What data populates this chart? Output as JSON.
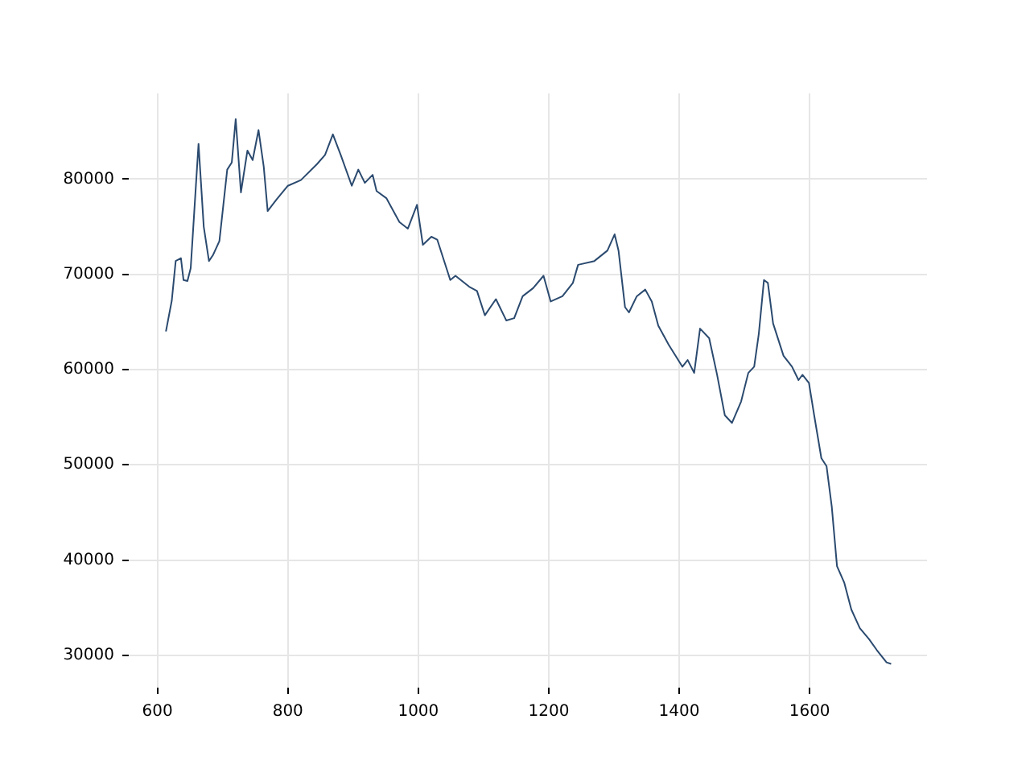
{
  "chart_data": {
    "type": "line",
    "xlim": [
      556,
      1780
    ],
    "ylim": [
      26600,
      89000
    ],
    "xticks": [
      600,
      800,
      1000,
      1200,
      1400,
      1600
    ],
    "yticks": [
      30000,
      40000,
      50000,
      60000,
      70000,
      80000
    ],
    "grid": true,
    "legend": false,
    "marker": "none",
    "line_style": "solid",
    "series": [
      {
        "color": "#2b4a6f",
        "x": [
          613,
          622,
          628,
          636,
          640,
          646,
          651,
          663,
          671,
          679,
          685,
          695,
          707,
          714,
          720,
          728,
          738,
          746,
          755,
          763,
          769,
          783,
          800,
          820,
          845,
          857,
          869,
          881,
          898,
          908,
          918,
          930,
          936,
          951,
          971,
          984,
          998,
          1007,
          1020,
          1029,
          1049,
          1057,
          1078,
          1090,
          1102,
          1119,
          1135,
          1147,
          1160,
          1176,
          1192,
          1203,
          1221,
          1237,
          1245,
          1270,
          1290,
          1301,
          1307,
          1317,
          1323,
          1335,
          1348,
          1358,
          1368,
          1384,
          1405,
          1413,
          1423,
          1432,
          1446,
          1458,
          1470,
          1481,
          1495,
          1506,
          1515,
          1522,
          1530,
          1536,
          1544,
          1560,
          1573,
          1583,
          1589,
          1599,
          1607,
          1618,
          1626,
          1634,
          1642,
          1653,
          1664,
          1677,
          1691,
          1703,
          1718,
          1725
        ],
        "values": [
          64000,
          67250,
          71400,
          71700,
          69400,
          69300,
          70650,
          83700,
          75000,
          71400,
          72000,
          73500,
          81000,
          81750,
          86300,
          78600,
          83000,
          82000,
          85150,
          81300,
          76650,
          77900,
          79300,
          79900,
          81600,
          82550,
          84700,
          82550,
          79300,
          81000,
          79600,
          80450,
          78750,
          78000,
          75500,
          74800,
          77300,
          73100,
          73950,
          73650,
          69400,
          69850,
          68700,
          68250,
          65700,
          67400,
          65150,
          65400,
          67700,
          68550,
          69850,
          67150,
          67700,
          69100,
          71000,
          71400,
          72500,
          74200,
          72500,
          66550,
          66000,
          67700,
          68400,
          67150,
          64600,
          62600,
          60300,
          61000,
          59650,
          64300,
          63300,
          59500,
          55200,
          54400,
          56650,
          59650,
          60300,
          63700,
          69400,
          69100,
          64850,
          61450,
          60300,
          58900,
          59450,
          58600,
          55200,
          50700,
          49850,
          45600,
          39350,
          37650,
          34800,
          32850,
          31700,
          30550,
          29250,
          29100
        ]
      }
    ]
  }
}
